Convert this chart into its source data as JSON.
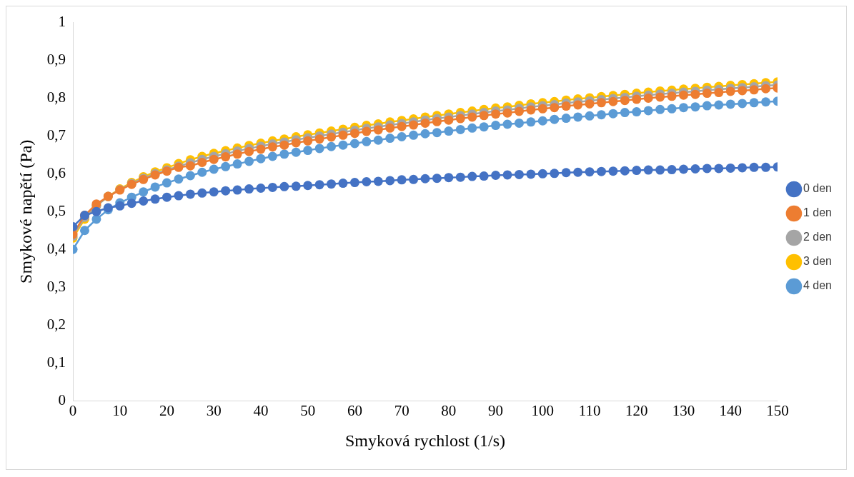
{
  "chart_data": {
    "type": "line",
    "xlabel": "Smyková rychlost (1/s)",
    "ylabel": "Smykové napětí (Pa)",
    "x": [
      0,
      2.5,
      5,
      7.5,
      10,
      12.5,
      15,
      17.5,
      20,
      22.5,
      25,
      27.5,
      30,
      32.5,
      35,
      37.5,
      40,
      42.5,
      45,
      47.5,
      50,
      52.5,
      55,
      57.5,
      60,
      62.5,
      65,
      67.5,
      70,
      72.5,
      75,
      77.5,
      80,
      82.5,
      85,
      87.5,
      90,
      92.5,
      95,
      97.5,
      100,
      102.5,
      105,
      107.5,
      110,
      112.5,
      115,
      117.5,
      120,
      122.5,
      125,
      127.5,
      130,
      132.5,
      135,
      137.5,
      140,
      142.5,
      145,
      147.5,
      150
    ],
    "series": [
      {
        "name": "0 den",
        "color": "#4472c4",
        "values": [
          0.46,
          0.49,
          0.5,
          0.51,
          0.515,
          0.522,
          0.528,
          0.533,
          0.538,
          0.542,
          0.546,
          0.549,
          0.552,
          0.555,
          0.557,
          0.56,
          0.562,
          0.564,
          0.566,
          0.567,
          0.569,
          0.571,
          0.573,
          0.575,
          0.577,
          0.579,
          0.58,
          0.582,
          0.584,
          0.585,
          0.587,
          0.588,
          0.59,
          0.591,
          0.593,
          0.594,
          0.596,
          0.597,
          0.598,
          0.599,
          0.6,
          0.601,
          0.603,
          0.604,
          0.605,
          0.606,
          0.607,
          0.608,
          0.609,
          0.61,
          0.61,
          0.611,
          0.612,
          0.613,
          0.614,
          0.614,
          0.615,
          0.616,
          0.617,
          0.617,
          0.618
        ]
      },
      {
        "name": "1 den",
        "color": "#ed7d31",
        "values": [
          0.44,
          0.49,
          0.52,
          0.54,
          0.557,
          0.572,
          0.585,
          0.597,
          0.607,
          0.617,
          0.621,
          0.63,
          0.638,
          0.645,
          0.652,
          0.659,
          0.665,
          0.671,
          0.676,
          0.682,
          0.687,
          0.692,
          0.697,
          0.702,
          0.707,
          0.712,
          0.716,
          0.721,
          0.725,
          0.729,
          0.734,
          0.738,
          0.742,
          0.746,
          0.75,
          0.754,
          0.758,
          0.761,
          0.765,
          0.769,
          0.772,
          0.775,
          0.779,
          0.782,
          0.785,
          0.788,
          0.791,
          0.794,
          0.797,
          0.8,
          0.803,
          0.805,
          0.808,
          0.81,
          0.813,
          0.815,
          0.818,
          0.82,
          0.822,
          0.825,
          0.827
        ]
      },
      {
        "name": "2 den",
        "color": "#a5a5a5",
        "values": [
          0.435,
          0.485,
          0.515,
          0.54,
          0.558,
          0.574,
          0.588,
          0.6,
          0.61,
          0.62,
          0.629,
          0.638,
          0.646,
          0.653,
          0.66,
          0.667,
          0.673,
          0.679,
          0.684,
          0.69,
          0.695,
          0.7,
          0.705,
          0.71,
          0.715,
          0.72,
          0.724,
          0.729,
          0.733,
          0.737,
          0.742,
          0.746,
          0.75,
          0.754,
          0.758,
          0.762,
          0.766,
          0.769,
          0.773,
          0.777,
          0.78,
          0.783,
          0.787,
          0.79,
          0.793,
          0.796,
          0.799,
          0.802,
          0.805,
          0.808,
          0.811,
          0.813,
          0.816,
          0.818,
          0.821,
          0.823,
          0.826,
          0.828,
          0.83,
          0.833,
          0.835
        ]
      },
      {
        "name": "3 den",
        "color": "#ffc000",
        "values": [
          0.43,
          0.48,
          0.515,
          0.54,
          0.56,
          0.577,
          0.592,
          0.605,
          0.616,
          0.627,
          0.637,
          0.646,
          0.654,
          0.661,
          0.668,
          0.675,
          0.681,
          0.687,
          0.692,
          0.698,
          0.703,
          0.708,
          0.713,
          0.718,
          0.723,
          0.728,
          0.732,
          0.737,
          0.741,
          0.745,
          0.75,
          0.754,
          0.758,
          0.762,
          0.766,
          0.77,
          0.774,
          0.777,
          0.781,
          0.785,
          0.788,
          0.791,
          0.795,
          0.798,
          0.801,
          0.804,
          0.807,
          0.81,
          0.813,
          0.816,
          0.819,
          0.821,
          0.824,
          0.826,
          0.829,
          0.831,
          0.834,
          0.836,
          0.838,
          0.841,
          0.843
        ]
      },
      {
        "name": "4 den",
        "color": "#5b9bd5",
        "values": [
          0.4,
          0.45,
          0.48,
          0.505,
          0.523,
          0.538,
          0.552,
          0.565,
          0.576,
          0.586,
          0.595,
          0.604,
          0.612,
          0.619,
          0.626,
          0.633,
          0.64,
          0.646,
          0.652,
          0.657,
          0.662,
          0.667,
          0.672,
          0.676,
          0.68,
          0.685,
          0.689,
          0.694,
          0.698,
          0.702,
          0.706,
          0.709,
          0.713,
          0.717,
          0.721,
          0.724,
          0.728,
          0.731,
          0.734,
          0.737,
          0.74,
          0.744,
          0.747,
          0.75,
          0.753,
          0.756,
          0.759,
          0.762,
          0.764,
          0.767,
          0.77,
          0.772,
          0.775,
          0.777,
          0.78,
          0.782,
          0.784,
          0.786,
          0.788,
          0.79,
          0.792
        ]
      }
    ],
    "xlim": [
      0,
      150
    ],
    "xticks": [
      0,
      10,
      20,
      30,
      40,
      50,
      60,
      70,
      80,
      90,
      100,
      110,
      120,
      130,
      140,
      150
    ],
    "ylim": [
      0,
      1
    ],
    "yticks": [
      0,
      {
        "value": 0.1,
        "label": "0,1"
      },
      {
        "value": 0.2,
        "label": "0,2"
      },
      {
        "value": 0.3,
        "label": "0,3"
      },
      {
        "value": 0.4,
        "label": "0,4"
      },
      {
        "value": 0.5,
        "label": "0,5"
      },
      {
        "value": 0.6,
        "label": "0,6"
      },
      {
        "value": 0.7,
        "label": "0,7"
      },
      {
        "value": 0.8,
        "label": "0,8"
      },
      {
        "value": 0.9,
        "label": "0,9"
      },
      1
    ],
    "legend": "right",
    "marker": "circle",
    "line_style": "solid",
    "grid": false
  }
}
